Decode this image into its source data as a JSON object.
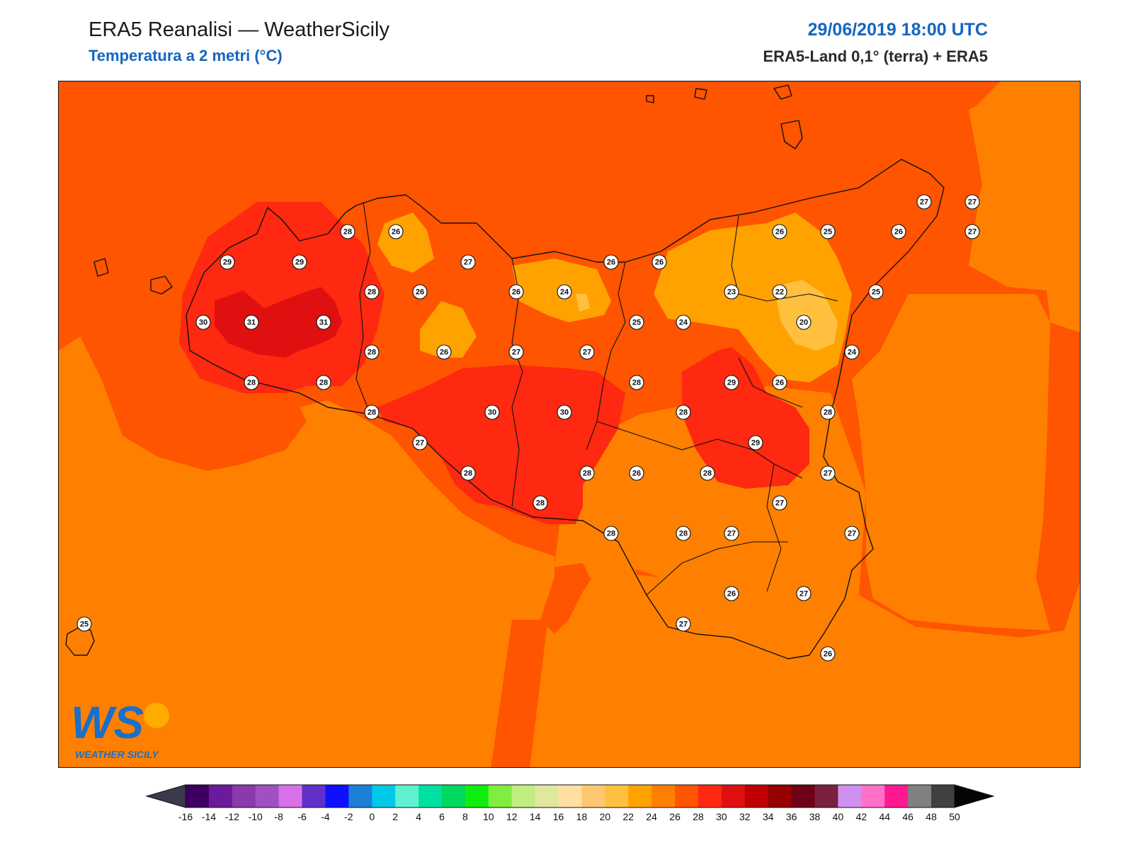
{
  "header": {
    "title": "ERA5 Reanalisi — WeatherSicily",
    "subtitle": "Temperatura a 2 metri (°C)",
    "datetime": "29/06/2019 18:00 UTC",
    "source": "ERA5-Land 0,1° (terra) + ERA5"
  },
  "logo": {
    "letters": "WS",
    "text": "WEATHER SICILY"
  },
  "colors": {
    "t24": "#ff8000",
    "t22": "#ffa200",
    "t20": "#ffc040",
    "t26": "#ff5400",
    "t28": "#ff2810",
    "t30": "#e01010",
    "coast": "#111111"
  },
  "stations": [
    {
      "lon": 12.37,
      "lat": 38.31,
      "value": "28"
    },
    {
      "lon": 12.47,
      "lat": 38.29,
      "value": "26"
    },
    {
      "lon": 12.85,
      "lat": 38.05,
      "value": "27"
    },
    {
      "lon": 13.15,
      "lat": 38.08,
      "value": "26"
    },
    {
      "lon": 13.25,
      "lat": 38.09,
      "value": "26"
    },
    {
      "lon": 13.75,
      "lat": 38.25,
      "value": "26"
    },
    {
      "lon": 13.85,
      "lat": 38.25,
      "value": "25"
    },
    {
      "lon": 14.0,
      "lat": 38.25,
      "value": "26"
    },
    {
      "lon": 14.05,
      "lat": 38.45,
      "value": "27"
    },
    {
      "lon": 14.15,
      "lat": 38.45,
      "value": "27"
    },
    {
      "lon": 14.15,
      "lat": 38.25,
      "value": "27"
    },
    {
      "lon": 11.91,
      "lat": 38.06,
      "value": "29"
    },
    {
      "lon": 12.06,
      "lat": 38.06,
      "value": "29"
    },
    {
      "lon": 11.86,
      "lat": 37.86,
      "value": "30"
    },
    {
      "lon": 11.96,
      "lat": 37.86,
      "value": "31"
    },
    {
      "lon": 12.11,
      "lat": 37.86,
      "value": "31"
    },
    {
      "lon": 12.21,
      "lat": 37.96,
      "value": "28"
    },
    {
      "lon": 12.31,
      "lat": 37.96,
      "value": "26"
    },
    {
      "lon": 12.51,
      "lat": 37.96,
      "value": "26"
    },
    {
      "lon": 12.61,
      "lat": 37.96,
      "value": "24"
    },
    {
      "lon": 12.21,
      "lat": 37.76,
      "value": "28"
    },
    {
      "lon": 12.36,
      "lat": 37.76,
      "value": "26"
    },
    {
      "lon": 12.51,
      "lat": 37.76,
      "value": "27"
    },
    {
      "lon": 12.66,
      "lat": 37.76,
      "value": "27"
    },
    {
      "lon": 11.96,
      "lat": 37.66,
      "value": "28"
    },
    {
      "lon": 12.11,
      "lat": 37.66,
      "value": "28"
    },
    {
      "lon": 12.21,
      "lat": 37.56,
      "value": "28"
    },
    {
      "lon": 12.46,
      "lat": 37.56,
      "value": "30"
    },
    {
      "lon": 12.61,
      "lat": 37.56,
      "value": "30"
    },
    {
      "lon": 12.31,
      "lat": 37.46,
      "value": "27"
    },
    {
      "lon": 12.41,
      "lat": 37.36,
      "value": "28"
    },
    {
      "lon": 12.56,
      "lat": 37.26,
      "value": "28"
    },
    {
      "lon": 12.66,
      "lat": 37.36,
      "value": "28"
    },
    {
      "lon": 12.76,
      "lat": 37.36,
      "value": "26"
    },
    {
      "lon": 12.76,
      "lat": 37.66,
      "value": "28"
    },
    {
      "lon": 12.76,
      "lat": 37.86,
      "value": "25"
    },
    {
      "lon": 12.86,
      "lat": 37.86,
      "value": "24"
    },
    {
      "lon": 12.96,
      "lat": 37.96,
      "value": "23"
    },
    {
      "lon": 13.06,
      "lat": 37.96,
      "value": "22"
    },
    {
      "lon": 13.11,
      "lat": 37.86,
      "value": "20"
    },
    {
      "lon": 13.21,
      "lat": 37.96,
      "value": "25"
    },
    {
      "lon": 13.21,
      "lat": 37.76,
      "value": "24"
    },
    {
      "lon": 12.96,
      "lat": 37.66,
      "value": "29"
    },
    {
      "lon": 13.06,
      "lat": 37.66,
      "value": "26"
    },
    {
      "lon": 12.86,
      "lat": 37.56,
      "value": "28"
    },
    {
      "lon": 13.16,
      "lat": 37.56,
      "value": "28"
    },
    {
      "lon": 13.01,
      "lat": 37.46,
      "value": "29"
    },
    {
      "lon": 12.91,
      "lat": 37.36,
      "value": "28"
    },
    {
      "lon": 13.16,
      "lat": 37.36,
      "value": "27"
    },
    {
      "lon": 13.06,
      "lat": 37.26,
      "value": "27"
    },
    {
      "lon": 13.21,
      "lat": 37.16,
      "value": "27"
    },
    {
      "lon": 12.71,
      "lat": 37.16,
      "value": "28"
    },
    {
      "lon": 12.86,
      "lat": 37.16,
      "value": "28"
    },
    {
      "lon": 12.96,
      "lat": 37.16,
      "value": "27"
    },
    {
      "lon": 12.96,
      "lat": 36.96,
      "value": "26"
    },
    {
      "lon": 13.11,
      "lat": 36.96,
      "value": "27"
    },
    {
      "lon": 12.86,
      "lat": 36.86,
      "value": "27"
    },
    {
      "lon": 13.16,
      "lat": 36.76,
      "value": "26"
    },
    {
      "lon": 11.56,
      "lat": 36.86,
      "value": "25"
    }
  ],
  "colorbar": {
    "ticks": [
      "-16",
      "-14",
      "-12",
      "-10",
      "-8",
      "-6",
      "-4",
      "-2",
      "0",
      "2",
      "4",
      "6",
      "8",
      "10",
      "12",
      "14",
      "16",
      "18",
      "20",
      "22",
      "24",
      "26",
      "28",
      "30",
      "32",
      "34",
      "36",
      "38",
      "40",
      "42",
      "44",
      "46",
      "48",
      "50"
    ],
    "colors": [
      "#3d0060",
      "#6a1a9a",
      "#8a3aaa",
      "#a050c0",
      "#d870e8",
      "#6030c8",
      "#1010ff",
      "#1c7fd8",
      "#00c8e8",
      "#60f0d0",
      "#00e0a0",
      "#00d860",
      "#10ee10",
      "#80ee40",
      "#c0ee80",
      "#e0e8a0",
      "#ffe0a0",
      "#ffc870",
      "#ffc040",
      "#ffa200",
      "#ff8000",
      "#ff5400",
      "#ff2810",
      "#e01010",
      "#c00000",
      "#960000",
      "#700018",
      "#7a2040",
      "#d090f0",
      "#ff70c8",
      "#ff1890",
      "#808080",
      "#404040"
    ]
  }
}
